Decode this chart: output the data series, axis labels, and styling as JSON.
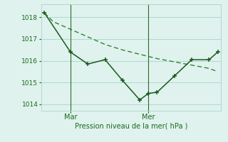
{
  "line1_x": [
    0,
    0.5,
    1.5,
    2.5,
    3.5,
    4.5,
    5.5,
    6.5,
    7.5,
    8.5,
    9.5,
    10
  ],
  "line1_y": [
    1018.2,
    1017.8,
    1017.45,
    1017.1,
    1016.75,
    1016.5,
    1016.3,
    1016.1,
    1015.95,
    1015.8,
    1015.65,
    1015.5
  ],
  "line2_x": [
    0,
    1.5,
    2.5,
    3.5,
    4.5,
    5.5,
    6.0,
    6.5,
    7.5,
    8.5,
    9.5,
    10
  ],
  "line2_y": [
    1018.2,
    1016.4,
    1015.85,
    1016.05,
    1015.1,
    1014.2,
    1014.5,
    1014.55,
    1015.3,
    1016.05,
    1016.05,
    1016.4
  ],
  "xlim": [
    -0.2,
    10.2
  ],
  "ylim": [
    1013.7,
    1018.6
  ],
  "yticks": [
    1014,
    1015,
    1016,
    1017,
    1018
  ],
  "mar_x": 1.5,
  "mer_x": 6.0,
  "xlabel": "Pression niveau de la mer( hPa )",
  "line1_color": "#1a7a1a",
  "line2_color": "#1a5a1a",
  "vline_color": "#2a6a2a",
  "bg_color": "#dff2ee",
  "grid_color": "#b0d8d0",
  "tick_label_color": "#1a6b1a",
  "axis_label_color": "#1a6b1a"
}
